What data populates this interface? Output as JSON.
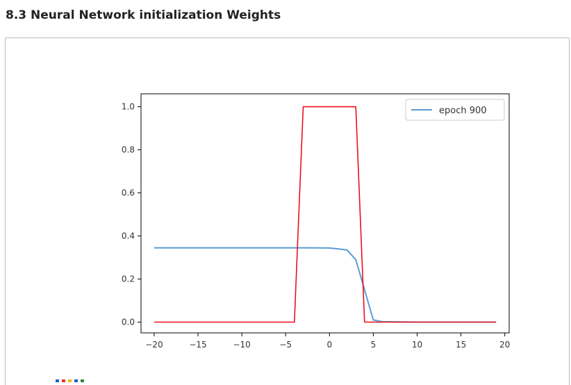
{
  "page": {
    "title": "8.3 Neural Network initialization Weights"
  },
  "colors": {
    "frame_border": "#bdbdbd",
    "axes": "#000000",
    "logo": [
      "#1f5fbf",
      "#e8342b",
      "#f4b400",
      "#1f5fbf",
      "#2a8a3a"
    ]
  },
  "chart_data": {
    "type": "line",
    "title": "",
    "xlabel": "",
    "ylabel": "",
    "xlim": [
      -21.5,
      20.5
    ],
    "ylim": [
      -0.05,
      1.06
    ],
    "xticks": [
      -20,
      -15,
      -10,
      -5,
      0,
      5,
      10,
      15,
      20
    ],
    "xtick_labels": [
      "−20",
      "−15",
      "−10",
      "−5",
      "0",
      "5",
      "10",
      "15",
      "20"
    ],
    "yticks": [
      0.0,
      0.2,
      0.4,
      0.6,
      0.8,
      1.0
    ],
    "ytick_labels": [
      "0.0",
      "0.2",
      "0.4",
      "0.6",
      "0.8",
      "1.0"
    ],
    "grid": false,
    "legend_position": "top-right",
    "legend": [
      "epoch 900"
    ],
    "series": [
      {
        "name": "epoch 900",
        "color": "#5b9bd5",
        "points": [
          [
            -20,
            0.345
          ],
          [
            -15,
            0.345
          ],
          [
            -10,
            0.345
          ],
          [
            -5,
            0.345
          ],
          [
            -2,
            0.345
          ],
          [
            0,
            0.344
          ],
          [
            1,
            0.34
          ],
          [
            2,
            0.335
          ],
          [
            3,
            0.29
          ],
          [
            4,
            0.15
          ],
          [
            5,
            0.01
          ],
          [
            6,
            0.002
          ],
          [
            10,
            0.0
          ],
          [
            15,
            0.0
          ],
          [
            19,
            0.0
          ]
        ]
      },
      {
        "color": "#e8101a",
        "points": [
          [
            -20,
            0.0
          ],
          [
            -4,
            0.0
          ],
          [
            -3,
            1.0
          ],
          [
            3,
            1.0
          ],
          [
            4,
            0.0
          ],
          [
            19,
            0.0
          ]
        ]
      }
    ]
  }
}
